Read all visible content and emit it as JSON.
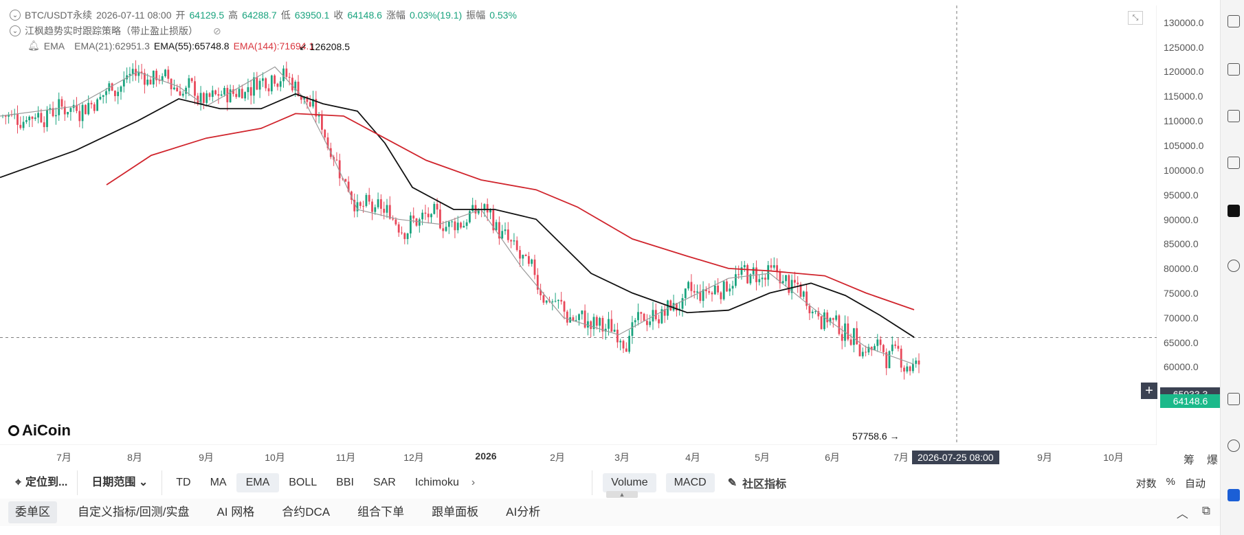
{
  "header": {
    "symbol": "BTC/USDT永续",
    "datetime": "2026-07-11 08:00",
    "open_label": "开",
    "open": "64129.5",
    "high_label": "高",
    "high": "64288.7",
    "low_label": "低",
    "low": "63950.1",
    "close_label": "收",
    "close": "64148.6",
    "change_label": "涨幅",
    "change": "0.03%(19.1)",
    "amplitude_label": "振幅",
    "amplitude": "0.53%",
    "strategy": "江枫趋势实时跟踪策略（带止盈止损版）",
    "ema_label": "EMA",
    "ema21": "EMA(21):62951.3",
    "ema55": "EMA(55):65748.8",
    "ema144": "EMA(144):71694.1"
  },
  "annotations": {
    "high_marker": "126208.5",
    "low_marker": "57758.6"
  },
  "logo": "AiCoin",
  "y_axis": [
    "130000.0",
    "125000.0",
    "120000.0",
    "115000.0",
    "110000.0",
    "105000.0",
    "100000.0",
    "95000.0",
    "90000.0",
    "85000.0",
    "80000.0",
    "75000.0",
    "70000.0",
    "65000.0",
    "60000.0"
  ],
  "x_axis": [
    "7月",
    "8月",
    "9月",
    "10月",
    "11月",
    "12月",
    "2026",
    "2月",
    "3月",
    "4月",
    "5月",
    "6月",
    "7月",
    "9月",
    "10月"
  ],
  "crosshair": {
    "price": "65933.3",
    "time": "2026-07-25 08:00"
  },
  "last_price": "64148.6",
  "axis_corner": [
    "筹",
    "爆"
  ],
  "toolbar": {
    "locate": "定位到...",
    "range": "日期范围",
    "indicators": [
      "TD",
      "MA",
      "EMA",
      "BOLL",
      "BBI",
      "SAR",
      "Ichimoku"
    ],
    "active_indicator": "EMA",
    "sub_indicators": [
      "Volume",
      "MACD"
    ],
    "community": "社区指标",
    "right": [
      "对数",
      "%",
      "自动"
    ]
  },
  "bottom_tabs": [
    "委单区",
    "自定义指标/回测/实盘",
    "AI 网格",
    "合约DCA",
    "组合下单",
    "跟单面板",
    "AI分析"
  ],
  "colors": {
    "up": "#19a37e",
    "down": "#e8485a",
    "ema21": "#9a9a9a",
    "ema55": "#111111",
    "ema144": "#d0242c",
    "accent": "#1bb98a"
  },
  "chart_data": {
    "type": "candlestick",
    "title": "",
    "ylim": [
      57000,
      132000
    ],
    "ema_series": [
      {
        "name": "EMA(21)",
        "points": [
          [
            0,
            111000
          ],
          [
            110,
            113000
          ],
          [
            200,
            120000
          ],
          [
            260,
            117000
          ],
          [
            300,
            113000
          ],
          [
            350,
            117000
          ],
          [
            400,
            121000
          ],
          [
            440,
            115000
          ],
          [
            480,
            104000
          ],
          [
            520,
            92000
          ],
          [
            580,
            90000
          ],
          [
            640,
            89000
          ],
          [
            700,
            92000
          ],
          [
            760,
            80000
          ],
          [
            820,
            70000
          ],
          [
            900,
            66500
          ],
          [
            980,
            72500
          ],
          [
            1060,
            78000
          ],
          [
            1120,
            79000
          ],
          [
            1200,
            70000
          ],
          [
            1260,
            64000
          ],
          [
            1330,
            60500
          ]
        ]
      },
      {
        "name": "EMA(55)",
        "points": [
          [
            0,
            98500
          ],
          [
            110,
            104000
          ],
          [
            200,
            110000
          ],
          [
            260,
            114500
          ],
          [
            320,
            112500
          ],
          [
            380,
            112500
          ],
          [
            430,
            115500
          ],
          [
            470,
            113500
          ],
          [
            520,
            112000
          ],
          [
            560,
            105500
          ],
          [
            600,
            96500
          ],
          [
            660,
            92000
          ],
          [
            720,
            92000
          ],
          [
            780,
            90000
          ],
          [
            860,
            79000
          ],
          [
            920,
            75000
          ],
          [
            1000,
            71000
          ],
          [
            1060,
            71500
          ],
          [
            1120,
            75000
          ],
          [
            1180,
            77000
          ],
          [
            1230,
            74500
          ],
          [
            1280,
            70500
          ],
          [
            1330,
            66000
          ]
        ]
      },
      {
        "name": "EMA(144)",
        "points": [
          [
            155,
            97000
          ],
          [
            220,
            103000
          ],
          [
            300,
            106500
          ],
          [
            380,
            108500
          ],
          [
            430,
            111500
          ],
          [
            500,
            111000
          ],
          [
            560,
            106500
          ],
          [
            620,
            102000
          ],
          [
            700,
            98000
          ],
          [
            780,
            96000
          ],
          [
            840,
            92500
          ],
          [
            920,
            86000
          ],
          [
            1000,
            82500
          ],
          [
            1060,
            80000
          ],
          [
            1120,
            79500
          ],
          [
            1200,
            78500
          ],
          [
            1260,
            75000
          ],
          [
            1330,
            71600
          ]
        ]
      }
    ]
  }
}
